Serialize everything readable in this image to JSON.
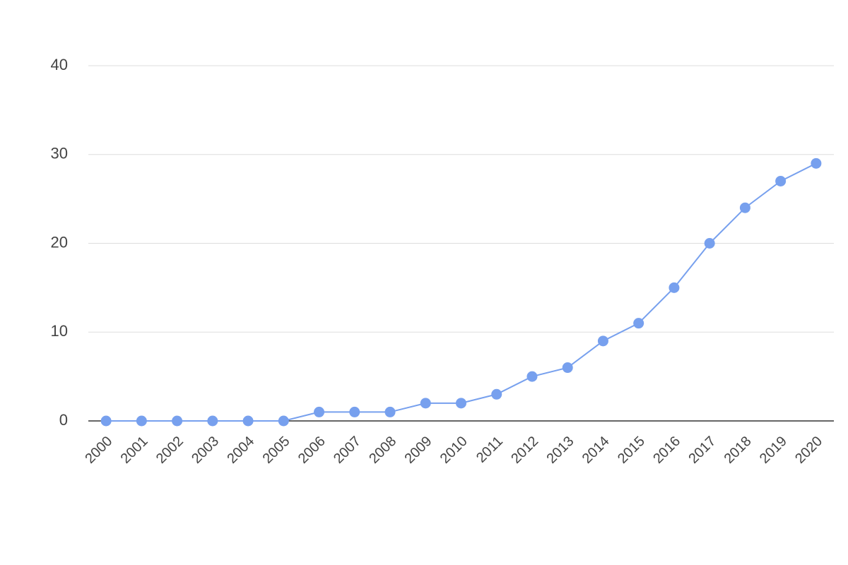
{
  "chart_data": {
    "type": "line",
    "categories": [
      "2000",
      "2001",
      "2002",
      "2003",
      "2004",
      "2005",
      "2006",
      "2007",
      "2008",
      "2009",
      "2010",
      "2011",
      "2012",
      "2013",
      "2014",
      "2015",
      "2016",
      "2017",
      "2018",
      "2019",
      "2020"
    ],
    "values": [
      0,
      0,
      0,
      0,
      0,
      0,
      1,
      1,
      1,
      2,
      2,
      3,
      5,
      6,
      9,
      11,
      15,
      20,
      24,
      27,
      29
    ],
    "color": "#77a0ee",
    "ylim": [
      0,
      40
    ],
    "yticks": [
      0,
      10,
      20,
      30,
      40
    ],
    "grid": true
  }
}
